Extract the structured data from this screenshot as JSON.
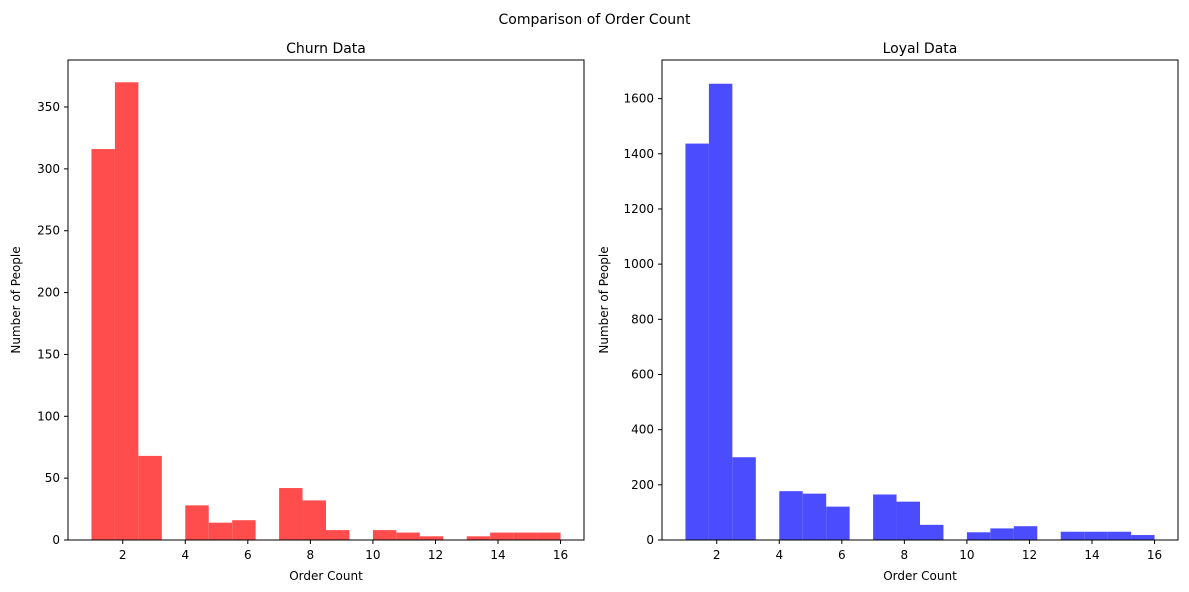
{
  "figure": {
    "title": "Comparison of Order Count"
  },
  "chart_data": [
    {
      "type": "bar",
      "title": "Churn Data",
      "xlabel": "Order Count",
      "ylabel": "Number of People",
      "xlim": [
        0.25,
        16.75
      ],
      "ylim": [
        0,
        388
      ],
      "xticks": [
        2,
        4,
        6,
        8,
        10,
        12,
        14,
        16
      ],
      "yticks": [
        0,
        50,
        100,
        150,
        200,
        250,
        300,
        350
      ],
      "grid": false,
      "color": "#ff4c4c",
      "bin_edges": [
        1,
        1.75,
        2.5,
        3.25,
        4,
        4.75,
        5.5,
        6.25,
        7,
        7.75,
        8.5,
        9.25,
        10,
        10.75,
        11.5,
        12.25,
        13,
        13.75,
        14.5,
        15.25,
        16
      ],
      "values": [
        316,
        370,
        68,
        0,
        28,
        14,
        16,
        0,
        42,
        32,
        8,
        0,
        8,
        6,
        3,
        0,
        3,
        6,
        6,
        6
      ]
    },
    {
      "type": "bar",
      "title": "Loyal Data",
      "xlabel": "Order Count",
      "ylabel": "Number of People",
      "xlim": [
        0.25,
        16.75
      ],
      "ylim": [
        0,
        1740
      ],
      "xticks": [
        2,
        4,
        6,
        8,
        10,
        12,
        14,
        16
      ],
      "yticks": [
        0,
        200,
        400,
        600,
        800,
        1000,
        1200,
        1400,
        1600
      ],
      "grid": false,
      "color": "#4c4cff",
      "bin_edges": [
        1,
        1.75,
        2.5,
        3.25,
        4,
        4.75,
        5.5,
        6.25,
        7,
        7.75,
        8.5,
        9.25,
        10,
        10.75,
        11.5,
        12.25,
        13,
        13.75,
        14.5,
        15.25,
        16
      ],
      "values": [
        1437,
        1654,
        300,
        0,
        177,
        168,
        121,
        0,
        165,
        139,
        55,
        0,
        28,
        42,
        50,
        0,
        30,
        30,
        30,
        18
      ]
    }
  ]
}
